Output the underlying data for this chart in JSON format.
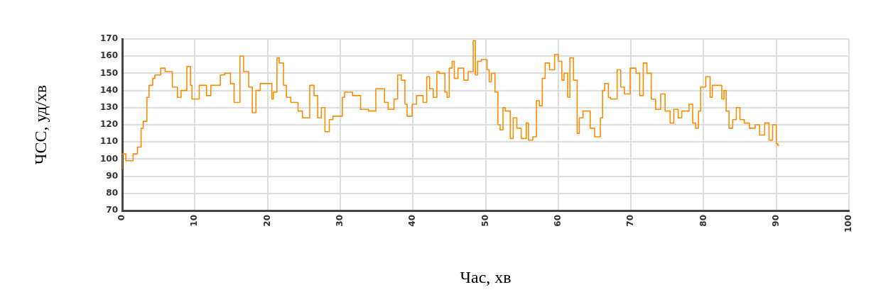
{
  "chart_data": {
    "type": "step",
    "xlabel": "Час, хв",
    "ylabel": "ЧСС, уд/хв",
    "xlim": [
      0,
      100
    ],
    "xticks": [
      0,
      10,
      20,
      30,
      40,
      50,
      60,
      70,
      80,
      90,
      100
    ],
    "ylim": [
      70,
      170
    ],
    "yticks": [
      70,
      80,
      90,
      100,
      110,
      120,
      130,
      140,
      150,
      160,
      170
    ],
    "grid": true,
    "legend": false,
    "marker": "none",
    "line_style": "solid",
    "series": [
      {
        "color": "#ff8c00",
        "x": [
          0,
          0.5,
          1.5,
          2.1,
          2.6,
          2.9,
          3.4,
          3.7,
          4.2,
          4.5,
          5.3,
          5.9,
          6.9,
          7.6,
          8.1,
          8.9,
          9.4,
          9.6,
          10.6,
          11.6,
          12.2,
          13.5,
          14.1,
          14.9,
          15.4,
          16.2,
          16.7,
          17.4,
          17.9,
          18.4,
          19.0,
          19.8,
          20.6,
          20.8,
          21.3,
          21.6,
          22.2,
          22.6,
          23.2,
          24.2,
          24.8,
          25.8,
          26.4,
          26.9,
          27.4,
          27.9,
          28.5,
          29.0,
          30.3,
          30.6,
          31.7,
          32.8,
          33.9,
          34.9,
          36.1,
          36.6,
          37.4,
          37.9,
          38.4,
          38.9,
          39.2,
          39.9,
          40.5,
          41.4,
          41.9,
          42.3,
          42.8,
          43.3,
          43.6,
          44.4,
          44.7,
          45.0,
          45.4,
          45.7,
          46.2,
          47.0,
          47.6,
          48.3,
          48.6,
          48.9,
          49.4,
          50.2,
          50.5,
          50.8,
          51.3,
          51.7,
          52.0,
          52.4,
          52.7,
          53.4,
          53.8,
          54.3,
          54.9,
          55.6,
          55.9,
          56.5,
          57.0,
          57.4,
          57.8,
          58.2,
          58.8,
          59.5,
          60.0,
          60.5,
          60.8,
          61.3,
          61.6,
          62.1,
          62.6,
          62.9,
          63.4,
          64.4,
          65.0,
          65.8,
          66.1,
          66.4,
          66.9,
          67.2,
          68.1,
          68.6,
          69.1,
          69.9,
          70.7,
          71.2,
          71.7,
          72.2,
          72.8,
          73.4,
          74.1,
          74.7,
          75.4,
          75.9,
          76.5,
          77.0,
          78.0,
          78.5,
          78.9,
          79.3,
          79.6,
          80.3,
          80.9,
          81.2,
          81.5,
          82.5,
          82.8,
          83.1,
          83.5,
          84.0,
          84.5,
          85.0,
          85.6,
          86.3,
          87.1,
          87.7,
          88.4,
          89.0,
          89.5,
          90.0,
          90.2,
          90.4
        ],
        "values": [
          94,
          103,
          99,
          103,
          107,
          118,
          122,
          136,
          143,
          147,
          149,
          153,
          151,
          142,
          136,
          140,
          154,
          143,
          135,
          143,
          137,
          143,
          149,
          150,
          144,
          133,
          160,
          151,
          142,
          127,
          140,
          144,
          144,
          135,
          139,
          159,
          156,
          143,
          136,
          133,
          128,
          124,
          143,
          137,
          124,
          130,
          116,
          123,
          125,
          136,
          139,
          137,
          129,
          128,
          141,
          133,
          129,
          135,
          149,
          146,
          132,
          125,
          132,
          137,
          133,
          148,
          141,
          136,
          151,
          150,
          139,
          136,
          153,
          157,
          147,
          153,
          146,
          151,
          169,
          149,
          157,
          158,
          152,
          145,
          150,
          139,
          120,
          117,
          130,
          128,
          112,
          124,
          118,
          112,
          121,
          111,
          113,
          134,
          131,
          147,
          156,
          152,
          161,
          157,
          146,
          150,
          136,
          159,
          146,
          115,
          124,
          128,
          118,
          113,
          124,
          140,
          144,
          136,
          135,
          152,
          142,
          138,
          153,
          150,
          137,
          156,
          150,
          135,
          129,
          138,
          128,
          121,
          129,
          124,
          128,
          132,
          121,
          118,
          128,
          142,
          148,
          136,
          143,
          143,
          135,
          140,
          128,
          118,
          123,
          130,
          123,
          121,
          118,
          120,
          114,
          121,
          111,
          120,
          109,
          108
        ]
      }
    ]
  }
}
